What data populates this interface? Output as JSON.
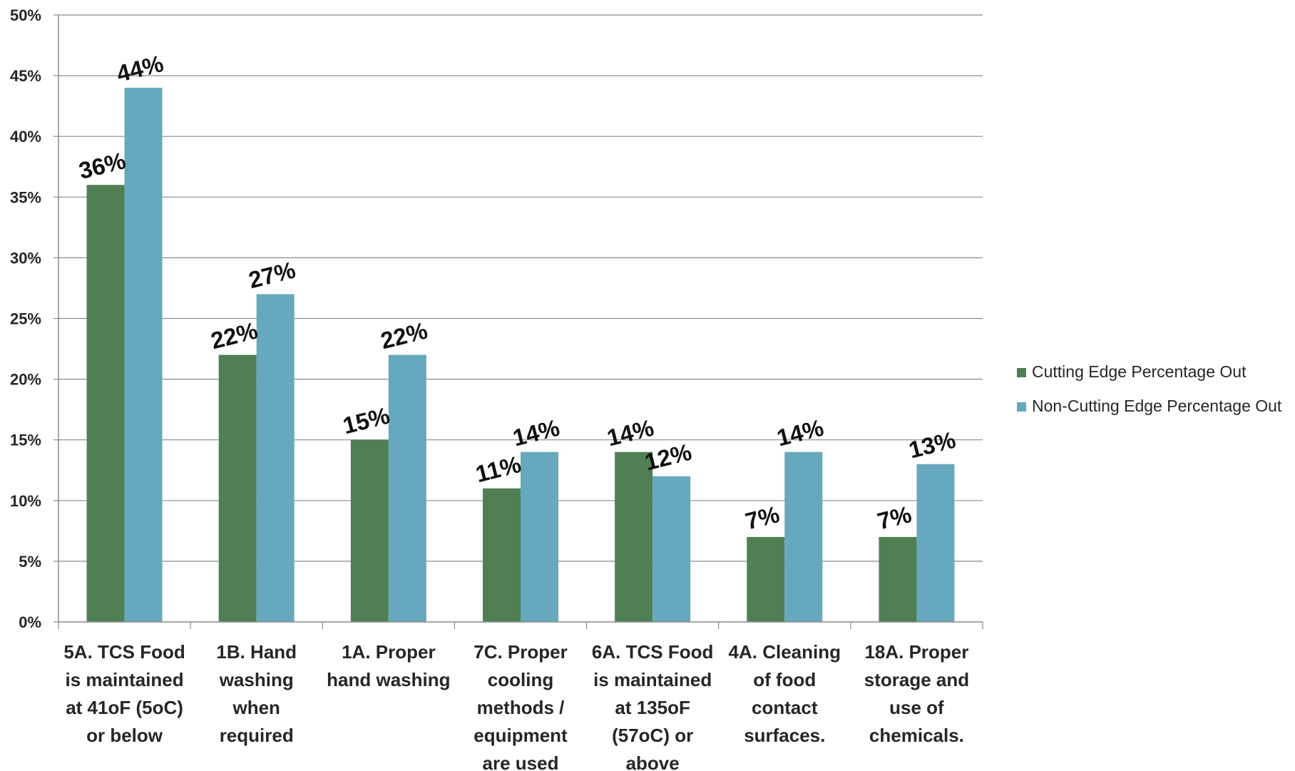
{
  "chart_data": {
    "type": "bar",
    "title": "",
    "xlabel": "",
    "ylabel": "",
    "ylim": [
      0,
      0.5
    ],
    "yticks": [
      "0%",
      "5%",
      "10%",
      "15%",
      "20%",
      "25%",
      "30%",
      "35%",
      "40%",
      "45%",
      "50%"
    ],
    "grid": true,
    "legend_position": "right",
    "categories": [
      [
        "5A. TCS Food",
        "is maintained",
        "at 41oF (5oC)",
        "or below"
      ],
      [
        "1B. Hand",
        "washing",
        "when",
        "required"
      ],
      [
        "1A. Proper",
        "hand washing"
      ],
      [
        "7C. Proper",
        "cooling",
        "methods /",
        "equipment",
        "are used"
      ],
      [
        "6A. TCS Food",
        "is maintained",
        "at 135oF",
        "(57oC) or",
        "above"
      ],
      [
        "4A. Cleaning",
        "of food",
        "contact",
        "surfaces."
      ],
      [
        "18A. Proper",
        "storage and",
        "use of",
        "chemicals."
      ]
    ],
    "series": [
      {
        "name": "Cutting Edge Percentage Out",
        "color": "#4f7f52",
        "values": [
          0.36,
          0.22,
          0.15,
          0.11,
          0.14,
          0.07,
          0.07
        ],
        "labels": [
          "36%",
          "22%",
          "15%",
          "11%",
          "14%",
          "7%",
          "7%"
        ]
      },
      {
        "name": "Non-Cutting Edge Percentage Out",
        "color": "#66a8bd",
        "values": [
          0.44,
          0.27,
          0.22,
          0.14,
          0.12,
          0.14,
          0.13
        ],
        "labels": [
          "44%",
          "27%",
          "22%",
          "14%",
          "12%",
          "14%",
          "13%"
        ]
      }
    ]
  }
}
